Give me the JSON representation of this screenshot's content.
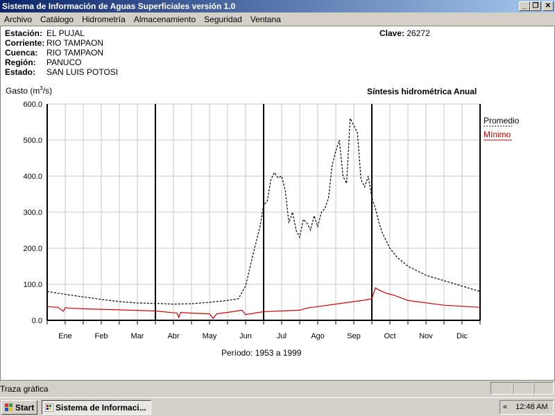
{
  "window": {
    "title": "Sistema de Información de Aguas Superficiales  versión 1.0",
    "buttons": [
      "_",
      "❐",
      "✕"
    ]
  },
  "menu": [
    "Archivo",
    "Catálogo",
    "Hidrometría",
    "Almacenamiento",
    "Seguridad",
    "Ventana"
  ],
  "station": {
    "estacion_label": "Estación:",
    "estacion": "EL PUJAL",
    "corriente_label": "Corriente:",
    "corriente": "RIO TAMPAON",
    "cuenca_label": "Cuenca:",
    "cuenca": "RIO TAMPAON",
    "region_label": "Región:",
    "region": "PANUCO",
    "estado_label": "Estado:",
    "estado": "SAN LUIS POTOSI",
    "clave_label": "Clave:",
    "clave": "26272"
  },
  "chart_header": {
    "ylabel_prefix": "Gasto (m",
    "ylabel_sup": "3",
    "ylabel_suffix": "/s)",
    "synthesis": "Síntesis hidrométrica   Anual"
  },
  "chart_data": {
    "type": "line",
    "categories": [
      "Ene",
      "Feb",
      "Mar",
      "Abr",
      "May",
      "Jun",
      "Jul",
      "Ago",
      "Sep",
      "Oct",
      "Nov",
      "Dic"
    ],
    "ylim": [
      0,
      600
    ],
    "yticks": [
      "0.0",
      "100.0",
      "200.0",
      "300.0",
      "400.0",
      "500.0",
      "600.0"
    ],
    "grid": true,
    "legend_position": "right",
    "series": [
      {
        "name": "Promedio",
        "color": "#000000",
        "style": "dashed",
        "x": [
          0,
          0.5,
          1,
          1.5,
          2,
          2.5,
          3,
          3.5,
          4,
          4.5,
          5,
          5.3,
          5.5,
          5.7,
          5.9,
          6.0,
          6.1,
          6.2,
          6.3,
          6.4,
          6.5,
          6.6,
          6.7,
          6.8,
          6.9,
          7.0,
          7.1,
          7.2,
          7.3,
          7.4,
          7.5,
          7.6,
          7.7,
          7.8,
          7.9,
          8.0,
          8.1,
          8.2,
          8.3,
          8.4,
          8.5,
          8.6,
          8.7,
          8.8,
          8.9,
          9.0,
          9.1,
          9.2,
          9.3,
          9.5,
          9.7,
          10.0,
          10.5,
          11.0,
          11.5,
          12.0
        ],
        "y": [
          80,
          72,
          65,
          58,
          52,
          48,
          47,
          45,
          46,
          50,
          55,
          60,
          95,
          180,
          260,
          320,
          330,
          390,
          410,
          395,
          400,
          360,
          270,
          300,
          250,
          230,
          280,
          270,
          250,
          290,
          260,
          300,
          310,
          340,
          430,
          470,
          500,
          400,
          380,
          560,
          540,
          520,
          390,
          370,
          400,
          340,
          310,
          270,
          240,
          200,
          175,
          150,
          125,
          110,
          95,
          80
        ]
      },
      {
        "name": "Mínimo",
        "color": "#cc0000",
        "style": "solid",
        "x": [
          0,
          0.3,
          0.45,
          0.5,
          0.6,
          1,
          2,
          3,
          3.6,
          3.65,
          3.7,
          4,
          4.5,
          4.6,
          4.7,
          5,
          5.4,
          5.5,
          6,
          6.5,
          7,
          7.2,
          7.5,
          8,
          8.5,
          8.8,
          9.0,
          9.1,
          9.2,
          9.4,
          9.6,
          10,
          11,
          12
        ],
        "y": [
          38,
          36,
          25,
          35,
          34,
          32,
          29,
          26,
          20,
          8,
          22,
          20,
          18,
          5,
          18,
          22,
          28,
          16,
          24,
          26,
          28,
          34,
          38,
          45,
          52,
          56,
          60,
          90,
          84,
          75,
          70,
          55,
          42,
          36
        ]
      }
    ]
  },
  "periodo": "Período:  1953 a 1999",
  "status": {
    "text": "Traza gráfica"
  },
  "taskbar": {
    "start": "Start",
    "task": "Sistema de Informaci...",
    "tray_arrow": "«",
    "clock": "12:48 AM"
  }
}
